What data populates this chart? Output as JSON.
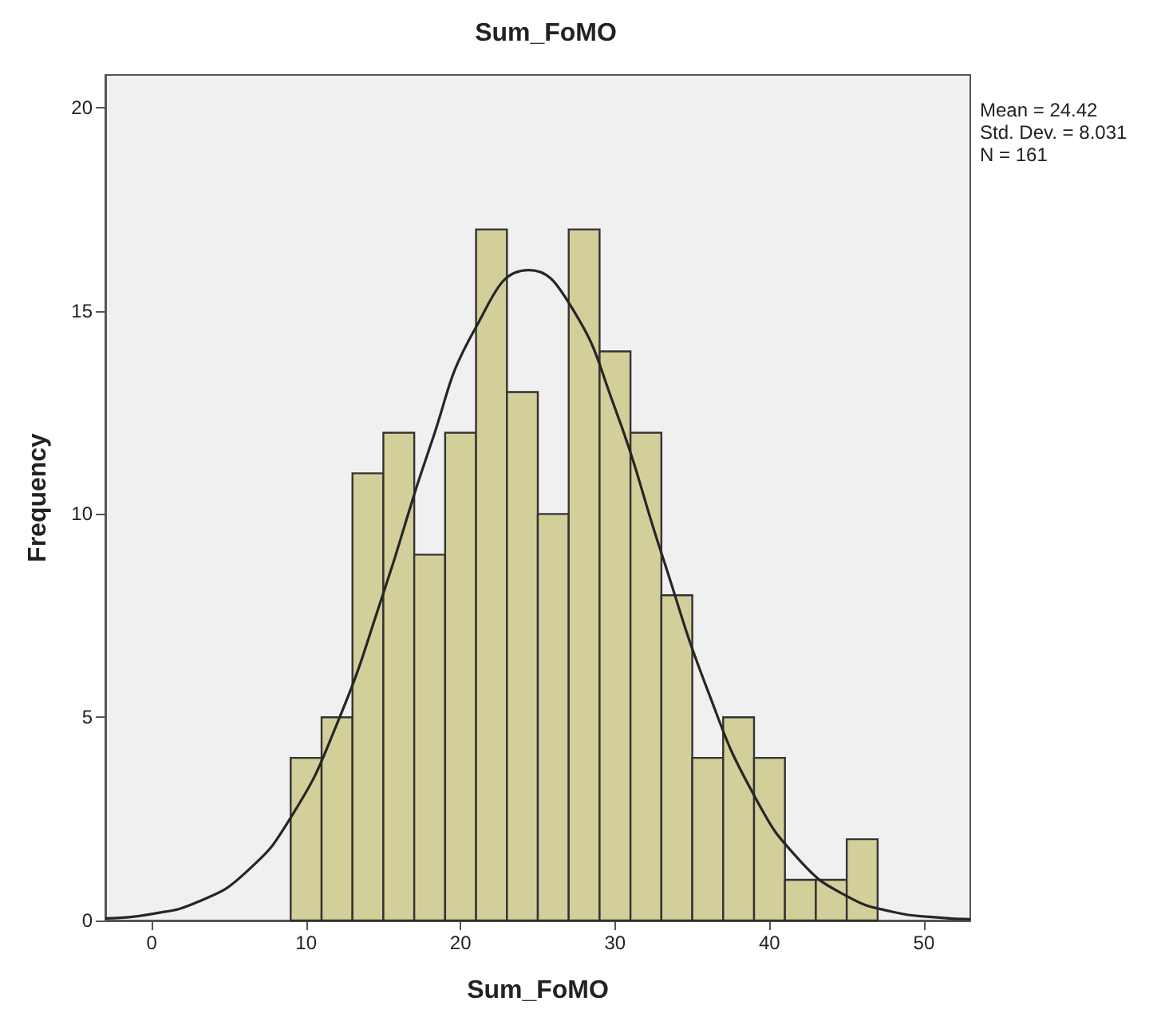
{
  "chart_data": {
    "type": "histogram",
    "title": "Sum_FoMO",
    "xlabel": "Sum_FoMO",
    "ylabel": "Frequency",
    "annotations": [
      "Mean = 24.42",
      "Std. Dev. = 8.031",
      "N = 161"
    ],
    "bins": [
      9,
      11,
      13,
      15,
      17,
      19,
      21,
      23,
      25,
      27,
      29,
      31,
      33,
      35,
      37,
      39,
      41,
      43,
      45,
      47
    ],
    "series": [
      {
        "color": "#d3cf9a",
        "values": [
          4,
          5,
          11,
          12,
          9,
          12,
          17,
          13,
          10,
          17,
          14,
          12,
          8,
          4,
          5,
          4,
          1,
          1,
          2
        ]
      },
      {
        "type": "line",
        "color": "#262626",
        "x": [
          -3,
          0,
          3,
          6,
          9,
          12,
          15,
          18,
          21,
          24.42,
          27,
          30,
          33,
          36,
          39,
          42,
          45,
          48,
          51,
          53
        ],
        "values": [
          0.05,
          0.16,
          0.46,
          1.15,
          2.53,
          4.84,
          8.05,
          11.63,
          14.6,
          16.0,
          15.2,
          12.6,
          9.04,
          5.66,
          3.08,
          1.46,
          0.6,
          0.21,
          0.07,
          0.03
        ]
      }
    ],
    "xlim": [
      -3,
      53
    ],
    "ylim": [
      0,
      20.8
    ],
    "xticks": [
      0,
      10,
      20,
      30,
      40,
      50
    ],
    "yticks": [
      0,
      5,
      10,
      15,
      20
    ],
    "line_style": "solid",
    "marker": "none"
  }
}
